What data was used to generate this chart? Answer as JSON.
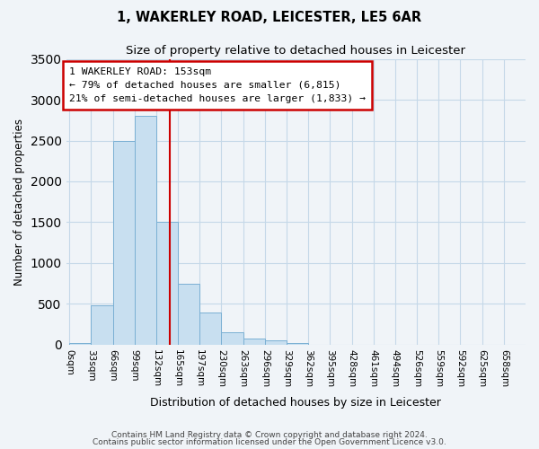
{
  "title1": "1, WAKERLEY ROAD, LEICESTER, LE5 6AR",
  "title2": "Size of property relative to detached houses in Leicester",
  "xlabel": "Distribution of detached houses by size in Leicester",
  "ylabel": "Number of detached properties",
  "bin_labels": [
    "0sqm",
    "33sqm",
    "66sqm",
    "99sqm",
    "132sqm",
    "165sqm",
    "197sqm",
    "230sqm",
    "263sqm",
    "296sqm",
    "329sqm",
    "362sqm",
    "395sqm",
    "428sqm",
    "461sqm",
    "494sqm",
    "526sqm",
    "559sqm",
    "592sqm",
    "625sqm",
    "658sqm"
  ],
  "bar_heights": [
    20,
    480,
    2500,
    2800,
    1500,
    750,
    390,
    150,
    80,
    50,
    20,
    0,
    0,
    0,
    0,
    0,
    0,
    0,
    0,
    0,
    0
  ],
  "bar_color": "#c8dff0",
  "bar_edge_color": "#7ab0d4",
  "vline_x": 153,
  "vline_color": "#cc0000",
  "ylim": [
    0,
    3500
  ],
  "yticks": [
    0,
    500,
    1000,
    1500,
    2000,
    2500,
    3000,
    3500
  ],
  "annotation_title": "1 WAKERLEY ROAD: 153sqm",
  "annotation_line1": "← 79% of detached houses are smaller (6,815)",
  "annotation_line2": "21% of semi-detached houses are larger (1,833) →",
  "annotation_box_color": "#ffffff",
  "annotation_box_edge": "#cc0000",
  "footnote1": "Contains HM Land Registry data © Crown copyright and database right 2024.",
  "footnote2": "Contains public sector information licensed under the Open Government Licence v3.0.",
  "bin_width": 33
}
